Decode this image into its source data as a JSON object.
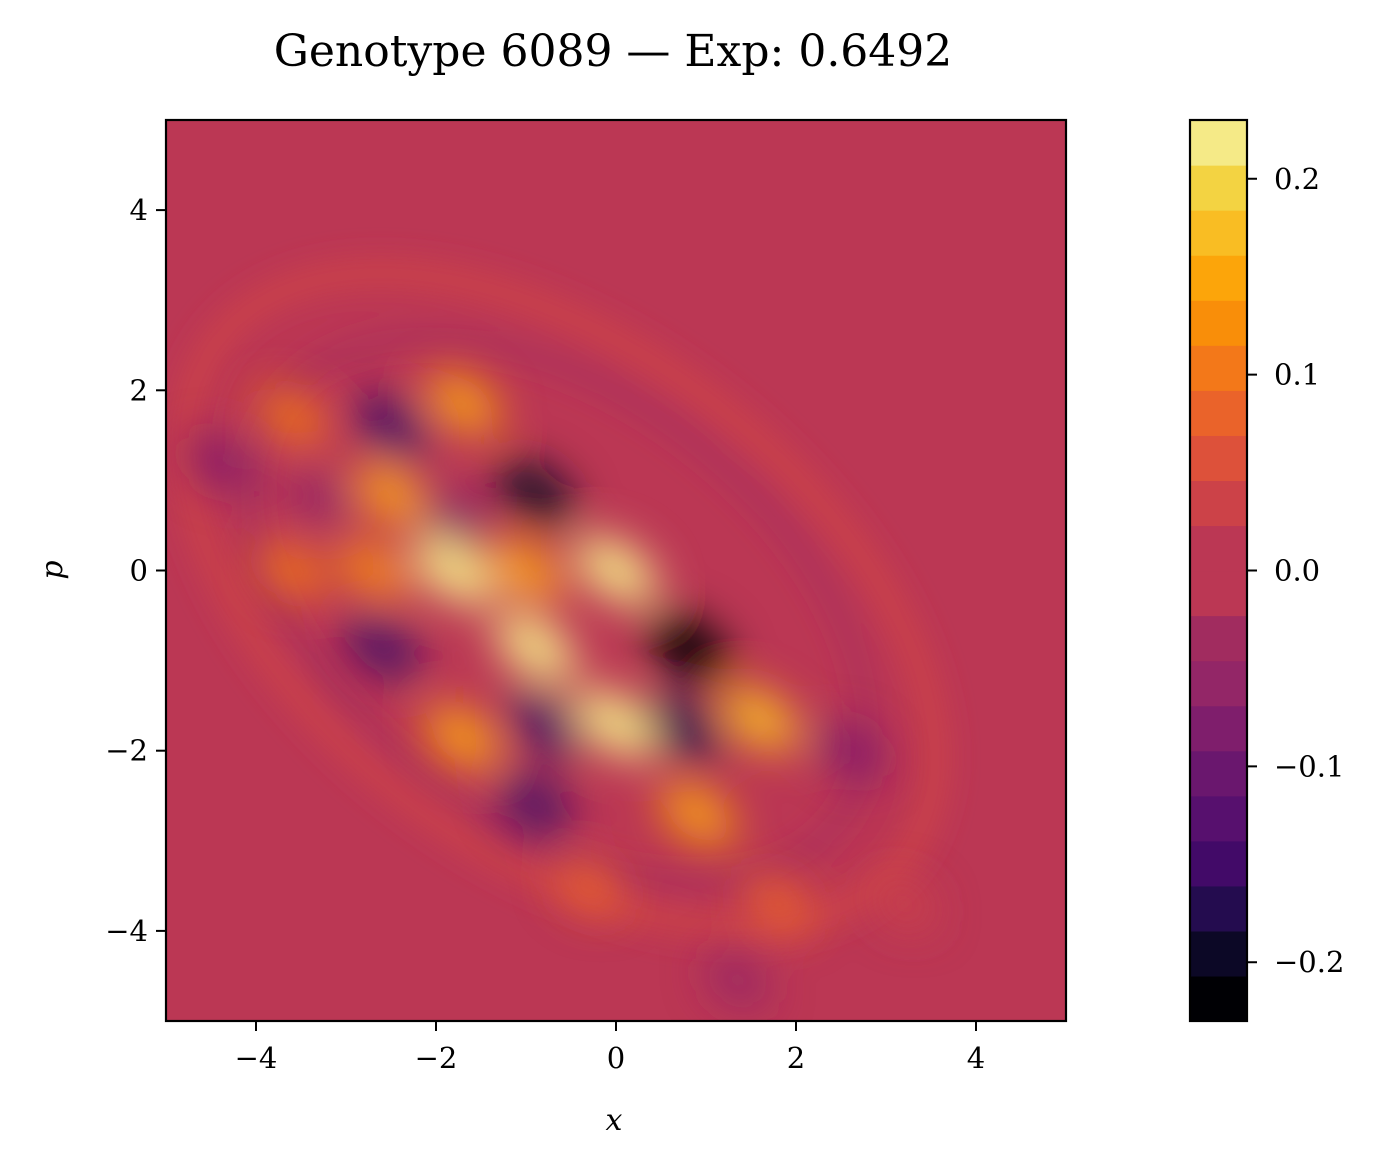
{
  "chart_data": {
    "type": "heatmap",
    "title": "Genotype 6089 — Exp: 0.6492",
    "xlabel": "x",
    "ylabel": "p",
    "xlim": [
      -5,
      5
    ],
    "ylim": [
      -5,
      5
    ],
    "xticks": [
      -4,
      -2,
      0,
      2,
      4
    ],
    "yticks": [
      -4,
      -2,
      0,
      2,
      4
    ],
    "x_tick_labels": [
      "−4",
      "−2",
      "0",
      "2",
      "4"
    ],
    "y_tick_labels": [
      "−4",
      "−2",
      "0",
      "2",
      "4"
    ],
    "colormap": "inferno (discretized)",
    "colorbar": {
      "vmin": -0.23,
      "vmax": 0.23,
      "ticks": [
        -0.2,
        -0.1,
        0.0,
        0.1,
        0.2
      ],
      "tick_labels": [
        "−0.2",
        "−0.1",
        "0.0",
        "0.1",
        "0.2"
      ],
      "levels": [
        {
          "from": -0.23,
          "to": -0.207,
          "color": "#000004"
        },
        {
          "from": -0.207,
          "to": -0.184,
          "color": "#0c0826"
        },
        {
          "from": -0.184,
          "to": -0.161,
          "color": "#240c4f"
        },
        {
          "from": -0.161,
          "to": -0.138,
          "color": "#420a68"
        },
        {
          "from": -0.138,
          "to": -0.115,
          "color": "#57106e"
        },
        {
          "from": -0.115,
          "to": -0.092,
          "color": "#6a176e"
        },
        {
          "from": -0.092,
          "to": -0.069,
          "color": "#7f1e6c"
        },
        {
          "from": -0.069,
          "to": -0.046,
          "color": "#932667"
        },
        {
          "from": -0.046,
          "to": -0.023,
          "color": "#a12c5f"
        },
        {
          "from": -0.023,
          "to": 0.0,
          "color": "#bb3754"
        },
        {
          "from": 0.0,
          "to": 0.023,
          "color": "#bb3754"
        },
        {
          "from": 0.023,
          "to": 0.046,
          "color": "#cc4248"
        },
        {
          "from": 0.046,
          "to": 0.069,
          "color": "#dd513a"
        },
        {
          "from": 0.069,
          "to": 0.092,
          "color": "#ea632a"
        },
        {
          "from": 0.092,
          "to": 0.115,
          "color": "#f37819"
        },
        {
          "from": 0.115,
          "to": 0.138,
          "color": "#f98e09"
        },
        {
          "from": 0.138,
          "to": 0.161,
          "color": "#fca50a"
        },
        {
          "from": 0.161,
          "to": 0.184,
          "color": "#f9bd23"
        },
        {
          "from": 0.184,
          "to": 0.207,
          "color": "#f3d342"
        },
        {
          "from": 0.207,
          "to": 0.23,
          "color": "#f5ea87"
        }
      ]
    },
    "background_value": 0.0,
    "features": [
      {
        "x": -1.8,
        "p": 0.0,
        "value": 0.23
      },
      {
        "x": 0.0,
        "p": 0.0,
        "value": 0.22
      },
      {
        "x": -0.9,
        "p": -0.85,
        "value": 0.22
      },
      {
        "x": 0.0,
        "p": -1.7,
        "value": 0.22
      },
      {
        "x": -1.0,
        "p": 0.0,
        "value": 0.15
      },
      {
        "x": 1.6,
        "p": -1.65,
        "value": 0.17
      },
      {
        "x": -1.7,
        "p": -1.85,
        "value": 0.16
      },
      {
        "x": 0.9,
        "p": -2.7,
        "value": 0.15
      },
      {
        "x": -1.7,
        "p": 1.85,
        "value": 0.14
      },
      {
        "x": -2.5,
        "p": 0.85,
        "value": 0.14
      },
      {
        "x": -2.7,
        "p": 0.0,
        "value": 0.12
      },
      {
        "x": -3.6,
        "p": 1.7,
        "value": 0.11
      },
      {
        "x": -3.6,
        "p": 0.0,
        "value": 0.1
      },
      {
        "x": 1.8,
        "p": -3.7,
        "value": 0.09
      },
      {
        "x": -0.3,
        "p": -3.5,
        "value": 0.08
      },
      {
        "x": 0.8,
        "p": -0.85,
        "value": -0.23
      },
      {
        "x": -0.9,
        "p": 0.85,
        "value": -0.19
      },
      {
        "x": -2.5,
        "p": 1.6,
        "value": -0.16
      },
      {
        "x": -2.6,
        "p": -0.85,
        "value": -0.16
      },
      {
        "x": -0.8,
        "p": -1.7,
        "value": -0.16
      },
      {
        "x": 0.75,
        "p": -1.75,
        "value": -0.18
      },
      {
        "x": -0.9,
        "p": -2.6,
        "value": -0.15
      },
      {
        "x": 2.6,
        "p": -2.0,
        "value": -0.09
      },
      {
        "x": -4.4,
        "p": 1.2,
        "value": -0.07
      },
      {
        "x": -1.8,
        "p": 0.6,
        "value": -0.07
      },
      {
        "x": -3.3,
        "p": 0.8,
        "value": -0.06
      },
      {
        "x": 1.35,
        "p": -4.55,
        "value": -0.05
      },
      {
        "x": 3.2,
        "p": -3.7,
        "value": 0.04
      }
    ]
  }
}
